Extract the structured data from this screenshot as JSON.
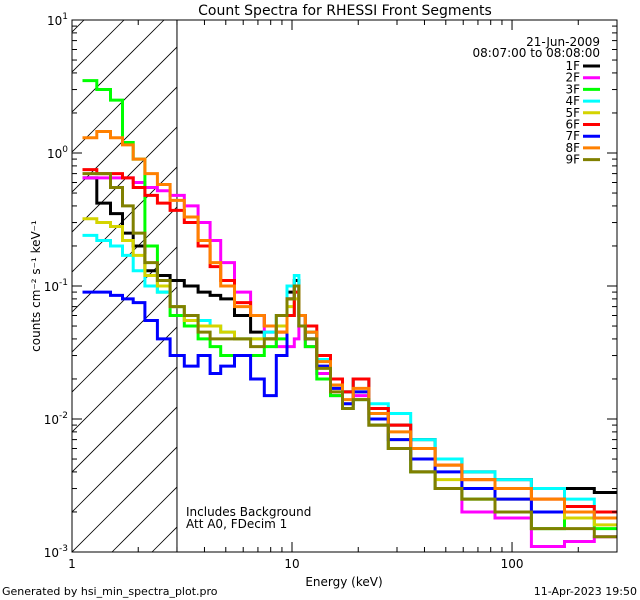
{
  "chart_data": {
    "type": "line",
    "title": "Count Spectra for RHESSI Front Segments",
    "xlabel": "Energy (keV)",
    "ylabel": "counts cm⁻² s⁻¹ keV⁻¹",
    "xscale": "log",
    "yscale": "log",
    "xlim": [
      1,
      300
    ],
    "ylim": [
      0.001,
      10
    ],
    "x_tick_labels": [
      "1",
      "10",
      "100"
    ],
    "y_tick_labels": [
      {
        "base": "10",
        "exp": "1"
      },
      {
        "base": "10",
        "exp": "0"
      },
      {
        "base": "10",
        "exp": "-1"
      },
      {
        "base": "10",
        "exp": "-2"
      },
      {
        "base": "10",
        "exp": "-3"
      }
    ],
    "date": "21-Jun-2009",
    "time_range": "08:07:00 to 08:08:00",
    "annotations": [
      "Includes Background",
      "Att A0, FDecim 1"
    ],
    "excluded_region_keV": [
      1,
      3
    ],
    "legend_placement": "top-right",
    "energies": [
      1.2,
      1.4,
      1.6,
      1.8,
      2.0,
      2.3,
      2.6,
      3.0,
      3.5,
      4,
      4.5,
      5,
      6,
      7,
      8,
      9,
      10,
      10.5,
      11,
      12,
      14,
      16,
      18,
      20,
      25,
      30,
      40,
      50,
      70,
      100,
      150,
      200,
      280
    ],
    "series": [
      {
        "name": "1F",
        "color": "#000000",
        "values": [
          0.65,
          0.42,
          0.35,
          0.25,
          0.2,
          0.13,
          0.12,
          0.11,
          0.1,
          0.09,
          0.085,
          0.08,
          0.06,
          0.045,
          0.04,
          0.05,
          0.09,
          0.11,
          0.06,
          0.045,
          0.03,
          0.02,
          0.016,
          0.02,
          0.012,
          0.009,
          0.007,
          0.005,
          0.004,
          0.0035,
          0.003,
          0.003,
          0.0028
        ]
      },
      {
        "name": "2F",
        "color": "#ff00ff",
        "values": [
          0.65,
          0.65,
          0.65,
          0.65,
          0.6,
          0.55,
          0.52,
          0.48,
          0.4,
          0.3,
          0.22,
          0.15,
          0.09,
          0.06,
          0.045,
          0.035,
          0.035,
          0.04,
          0.05,
          0.035,
          0.022,
          0.015,
          0.012,
          0.015,
          0.009,
          0.006,
          0.004,
          0.003,
          0.002,
          0.0018,
          0.0011,
          0.0012,
          0.0013
        ]
      },
      {
        "name": "3F",
        "color": "#00ff00",
        "values": [
          3.5,
          3.0,
          2.5,
          1.2,
          0.9,
          0.2,
          0.09,
          0.06,
          0.05,
          0.04,
          0.035,
          0.03,
          0.03,
          0.03,
          0.035,
          0.04,
          0.06,
          0.09,
          0.05,
          0.035,
          0.02,
          0.015,
          0.012,
          0.014,
          0.009,
          0.006,
          0.004,
          0.003,
          0.0025,
          0.002,
          0.0015,
          0.0018,
          0.0015
        ]
      },
      {
        "name": "4F",
        "color": "#00ffff",
        "values": [
          0.24,
          0.22,
          0.2,
          0.17,
          0.13,
          0.1,
          0.09,
          0.07,
          0.06,
          0.055,
          0.05,
          0.045,
          0.04,
          0.04,
          0.045,
          0.06,
          0.1,
          0.12,
          0.06,
          0.045,
          0.028,
          0.02,
          0.016,
          0.02,
          0.013,
          0.011,
          0.007,
          0.005,
          0.004,
          0.0035,
          0.003,
          0.0025,
          0.002
        ]
      },
      {
        "name": "5F",
        "color": "#d4d400",
        "values": [
          0.32,
          0.3,
          0.28,
          0.22,
          0.17,
          0.12,
          0.1,
          0.07,
          0.055,
          0.05,
          0.05,
          0.045,
          0.04,
          0.04,
          0.04,
          0.05,
          0.07,
          0.08,
          0.05,
          0.04,
          0.025,
          0.017,
          0.013,
          0.016,
          0.01,
          0.007,
          0.005,
          0.0035,
          0.003,
          0.0025,
          0.002,
          0.0018,
          0.0016
        ]
      },
      {
        "name": "6F",
        "color": "#ff0000",
        "values": [
          0.75,
          0.7,
          0.7,
          0.65,
          0.55,
          0.48,
          0.42,
          0.37,
          0.3,
          0.2,
          0.14,
          0.11,
          0.075,
          0.06,
          0.05,
          0.045,
          0.06,
          0.09,
          0.06,
          0.05,
          0.03,
          0.02,
          0.016,
          0.02,
          0.012,
          0.009,
          0.006,
          0.0045,
          0.0035,
          0.003,
          0.0025,
          0.0022,
          0.002
        ]
      },
      {
        "name": "7F",
        "color": "#0000ff",
        "values": [
          0.09,
          0.09,
          0.085,
          0.08,
          0.075,
          0.055,
          0.04,
          0.03,
          0.025,
          0.03,
          0.022,
          0.025,
          0.03,
          0.02,
          0.015,
          0.03,
          0.08,
          0.1,
          0.05,
          0.04,
          0.025,
          0.017,
          0.013,
          0.016,
          0.01,
          0.007,
          0.005,
          0.004,
          0.003,
          0.0025,
          0.002,
          0.002,
          0.0018
        ]
      },
      {
        "name": "8F",
        "color": "#ff8000",
        "values": [
          1.3,
          1.45,
          1.3,
          1.15,
          0.9,
          0.7,
          0.58,
          0.44,
          0.33,
          0.22,
          0.15,
          0.1,
          0.07,
          0.06,
          0.05,
          0.045,
          0.08,
          0.1,
          0.06,
          0.045,
          0.027,
          0.018,
          0.014,
          0.017,
          0.011,
          0.008,
          0.006,
          0.0045,
          0.0035,
          0.003,
          0.0025,
          0.002,
          0.0018
        ]
      },
      {
        "name": "9F",
        "color": "#808000",
        "values": [
          0.7,
          0.7,
          0.55,
          0.4,
          0.25,
          0.15,
          0.11,
          0.07,
          0.06,
          0.045,
          0.04,
          0.04,
          0.04,
          0.035,
          0.04,
          0.06,
          0.08,
          0.1,
          0.05,
          0.04,
          0.024,
          0.016,
          0.012,
          0.014,
          0.009,
          0.006,
          0.004,
          0.003,
          0.0025,
          0.002,
          0.0015,
          0.0015,
          0.0013
        ]
      }
    ]
  },
  "footer": {
    "generated_by": "Generated by hsi_min_spectra_plot.pro",
    "timestamp": "11-Apr-2023 19:50"
  }
}
